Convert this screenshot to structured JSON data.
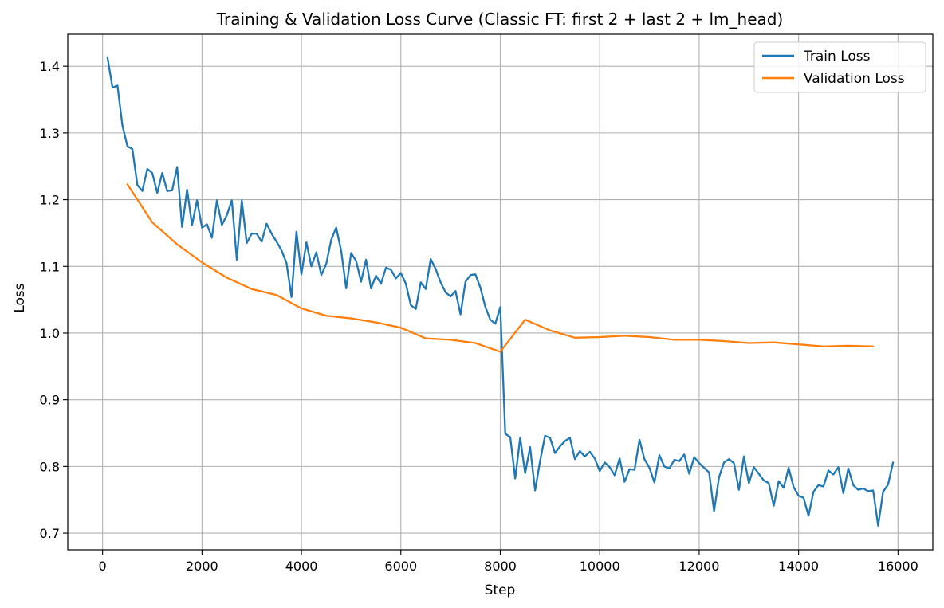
{
  "chart_data": {
    "type": "line",
    "title": "Training & Validation Loss Curve (Classic FT: first 2 + last 2 + lm_head)",
    "xlabel": "Step",
    "ylabel": "Loss",
    "xlim": [
      -700,
      16700
    ],
    "ylim": [
      0.675,
      1.448
    ],
    "xticks": [
      0,
      2000,
      4000,
      6000,
      8000,
      10000,
      12000,
      14000,
      16000
    ],
    "yticks": [
      0.7,
      0.8,
      0.9,
      1.0,
      1.1,
      1.2,
      1.3,
      1.4
    ],
    "grid": true,
    "legend_position": "top-right",
    "series": [
      {
        "name": "Train Loss",
        "color": "#1f77b4",
        "x": [
          100,
          200,
          300,
          400,
          500,
          600,
          700,
          800,
          900,
          1000,
          1100,
          1200,
          1300,
          1400,
          1500,
          1600,
          1700,
          1800,
          1900,
          2000,
          2100,
          2200,
          2300,
          2400,
          2500,
          2600,
          2700,
          2800,
          2900,
          3000,
          3100,
          3200,
          3300,
          3400,
          3500,
          3600,
          3700,
          3800,
          3900,
          4000,
          4100,
          4200,
          4300,
          4400,
          4500,
          4600,
          4700,
          4800,
          4900,
          5000,
          5100,
          5200,
          5300,
          5400,
          5500,
          5600,
          5700,
          5800,
          5900,
          6000,
          6100,
          6200,
          6300,
          6400,
          6500,
          6600,
          6700,
          6800,
          6900,
          7000,
          7100,
          7200,
          7300,
          7400,
          7500,
          7600,
          7700,
          7800,
          7900,
          8000,
          8100,
          8200,
          8300,
          8400,
          8500,
          8600,
          8700,
          8800,
          8900,
          9000,
          9100,
          9200,
          9300,
          9400,
          9500,
          9600,
          9700,
          9800,
          9900,
          10000,
          10100,
          10200,
          10300,
          10400,
          10500,
          10600,
          10700,
          10800,
          10900,
          11000,
          11100,
          11200,
          11300,
          11400,
          11500,
          11600,
          11700,
          11800,
          11900,
          12000,
          12100,
          12200,
          12300,
          12400,
          12500,
          12600,
          12700,
          12800,
          12900,
          13000,
          13100,
          13200,
          13300,
          13400,
          13500,
          13600,
          13700,
          13800,
          13900,
          14000,
          14100,
          14200,
          14300,
          14400,
          14500,
          14600,
          14700,
          14800,
          14900,
          15000,
          15100,
          15200,
          15300,
          15400,
          15500,
          15600,
          15700,
          15800,
          15900
        ],
        "values": [
          1.413,
          1.368,
          1.371,
          1.311,
          1.28,
          1.276,
          1.222,
          1.213,
          1.246,
          1.24,
          1.21,
          1.24,
          1.213,
          1.214,
          1.249,
          1.159,
          1.215,
          1.162,
          1.199,
          1.158,
          1.163,
          1.143,
          1.199,
          1.162,
          1.177,
          1.199,
          1.11,
          1.199,
          1.135,
          1.149,
          1.149,
          1.137,
          1.164,
          1.149,
          1.137,
          1.124,
          1.105,
          1.054,
          1.152,
          1.088,
          1.136,
          1.1,
          1.121,
          1.087,
          1.104,
          1.14,
          1.158,
          1.123,
          1.067,
          1.12,
          1.108,
          1.077,
          1.11,
          1.067,
          1.086,
          1.074,
          1.098,
          1.095,
          1.082,
          1.09,
          1.074,
          1.042,
          1.036,
          1.076,
          1.066,
          1.111,
          1.096,
          1.076,
          1.061,
          1.055,
          1.063,
          1.028,
          1.077,
          1.087,
          1.088,
          1.068,
          1.039,
          1.02,
          1.014,
          1.039,
          0.849,
          0.844,
          0.782,
          0.843,
          0.79,
          0.829,
          0.764,
          0.808,
          0.846,
          0.843,
          0.82,
          0.83,
          0.838,
          0.843,
          0.811,
          0.823,
          0.815,
          0.822,
          0.812,
          0.793,
          0.806,
          0.799,
          0.787,
          0.812,
          0.777,
          0.796,
          0.795,
          0.84,
          0.811,
          0.798,
          0.776,
          0.817,
          0.8,
          0.797,
          0.81,
          0.808,
          0.818,
          0.789,
          0.814,
          0.805,
          0.798,
          0.791,
          0.733,
          0.784,
          0.806,
          0.811,
          0.805,
          0.765,
          0.815,
          0.775,
          0.799,
          0.789,
          0.779,
          0.775,
          0.741,
          0.778,
          0.768,
          0.798,
          0.769,
          0.756,
          0.753,
          0.726,
          0.762,
          0.772,
          0.77,
          0.794,
          0.788,
          0.799,
          0.76,
          0.797,
          0.772,
          0.765,
          0.767,
          0.763,
          0.764,
          0.711,
          0.762,
          0.773,
          0.806
        ]
      },
      {
        "name": "Validation Loss",
        "color": "#ff7f0e",
        "x": [
          500,
          1000,
          1500,
          2000,
          2500,
          3000,
          3500,
          4000,
          4500,
          5000,
          5500,
          6000,
          6500,
          7000,
          7500,
          8000,
          8500,
          9000,
          9500,
          10000,
          10500,
          11000,
          11500,
          12000,
          12500,
          13000,
          13500,
          14000,
          14500,
          15000,
          15500
        ],
        "values": [
          1.223,
          1.166,
          1.133,
          1.106,
          1.083,
          1.066,
          1.057,
          1.037,
          1.026,
          1.022,
          1.016,
          1.008,
          0.992,
          0.99,
          0.985,
          0.972,
          1.02,
          1.004,
          0.993,
          0.994,
          0.996,
          0.994,
          0.99,
          0.99,
          0.988,
          0.985,
          0.986,
          0.983,
          0.98,
          0.981,
          0.98
        ]
      }
    ]
  }
}
